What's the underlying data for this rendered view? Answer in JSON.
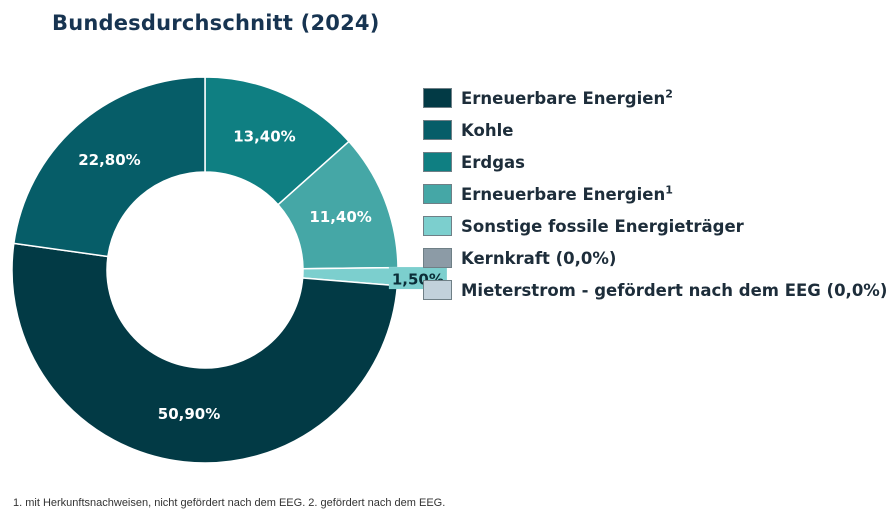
{
  "page": {
    "title": "Bundesdurchschnitt (2024)",
    "footnote": "1. mit Herkunftsnachweisen, nicht gefördert nach dem EEG. 2. gefördert nach dem EEG."
  },
  "chart_data": {
    "type": "pie",
    "variant": "donut",
    "title": "Bundesdurchschnitt (2024)",
    "legend_position": "right",
    "series": [
      {
        "name": "Erneuerbare Energien",
        "sup": "2",
        "value": 50.9,
        "label": "50,90%",
        "color": "#023a45"
      },
      {
        "name": "Kohle",
        "sup": "",
        "value": 22.8,
        "label": "22,80%",
        "color": "#065d68"
      },
      {
        "name": "Erdgas",
        "sup": "",
        "value": 13.4,
        "label": "13,40%",
        "color": "#0f7f82"
      },
      {
        "name": "Erneuerbare Energien",
        "sup": "1",
        "value": 11.4,
        "label": "11,40%",
        "color": "#45a7a6"
      },
      {
        "name": "Sonstige fossile Energieträger",
        "sup": "",
        "value": 1.5,
        "label": "1,50%",
        "color": "#7ccfce"
      },
      {
        "name": "Kernkraft (0,0%)",
        "sup": "",
        "value": 0.0,
        "label": "",
        "color": "#8c9ba6"
      },
      {
        "name": "Mieterstrom - gefördert nach dem EEG (0,0%)",
        "sup": "",
        "value": 0.0,
        "label": "",
        "color": "#c2d1db"
      }
    ]
  }
}
